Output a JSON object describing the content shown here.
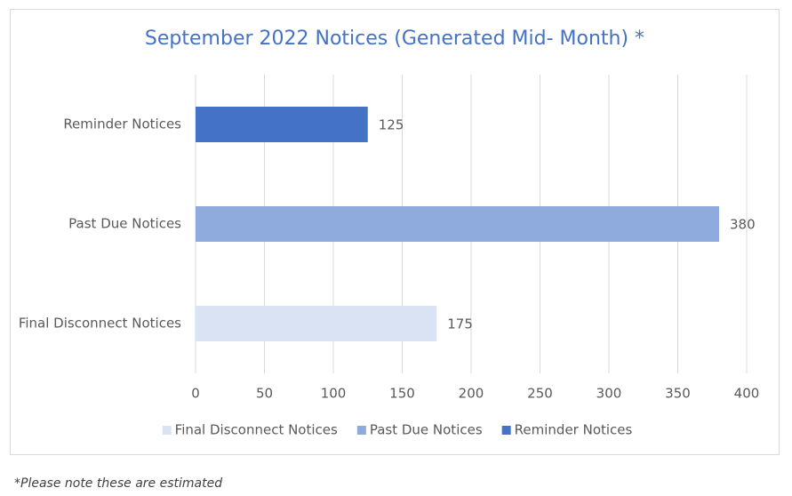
{
  "chart_data": {
    "type": "bar",
    "orientation": "horizontal",
    "title": "September 2022 Notices (Generated Mid- Month) *",
    "categories": [
      "Final Disconnect Notices",
      "Past Due Notices",
      "Reminder Notices"
    ],
    "values": [
      175,
      380,
      125
    ],
    "colors": [
      "#dae3f3",
      "#8faadc",
      "#4472c4"
    ],
    "xlim": [
      0,
      400
    ],
    "xticks": [
      0,
      50,
      100,
      150,
      200,
      250,
      300,
      350,
      400
    ],
    "grid": true,
    "legend": "bottom",
    "footnote": "*Please note these are estimated"
  }
}
